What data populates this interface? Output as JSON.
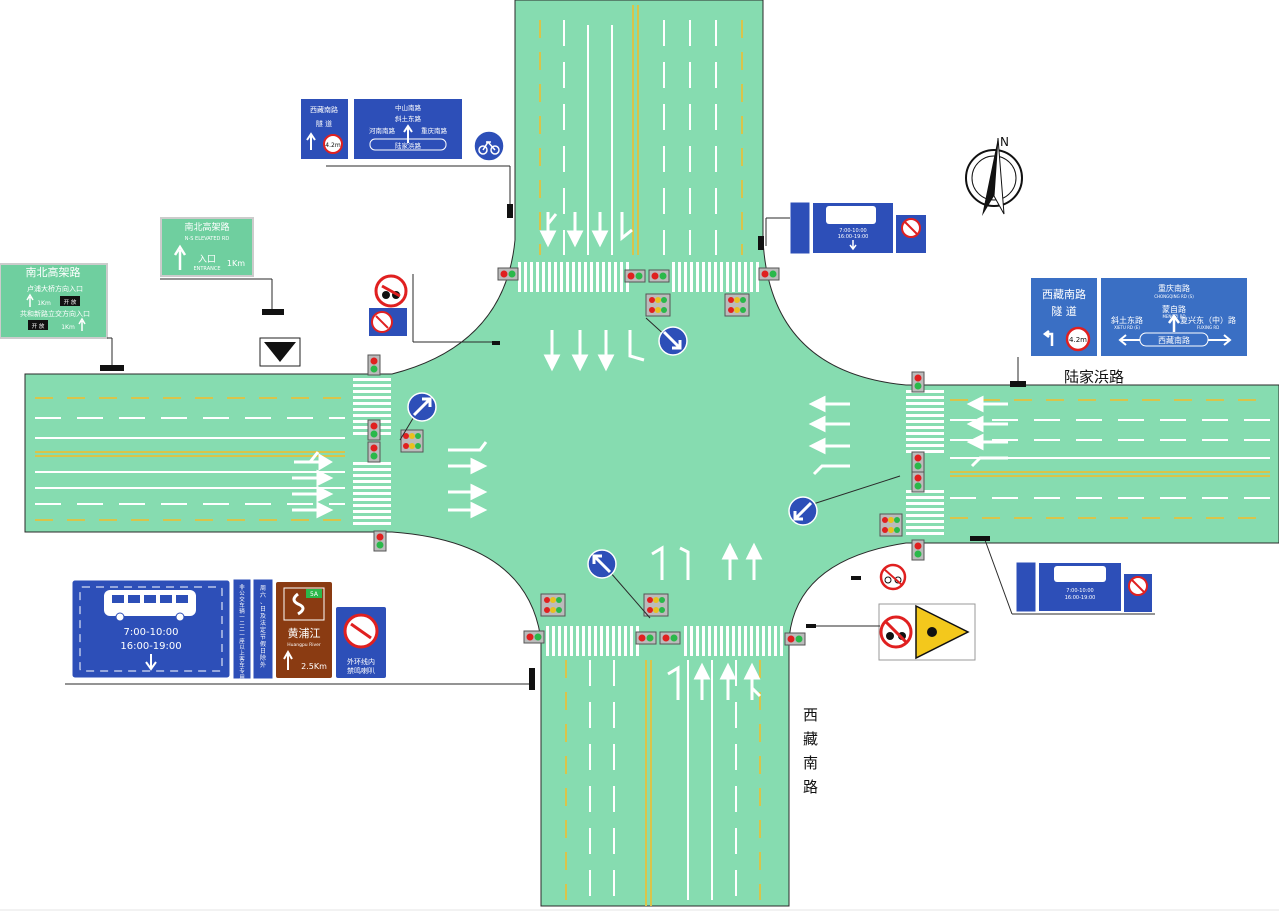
{
  "colors": {
    "road": "#86dcb0",
    "road_edge": "#2a2a2a",
    "sign_blue": "#2d4fb8",
    "guide_blue": "#3a6fc4",
    "guide_green": "#6fcf9f",
    "brown": "#8a3b12",
    "signal_red": "#e02020",
    "signal_yellow": "#e8c020",
    "signal_green": "#2ab84a",
    "yellow_line": "#d9c44a",
    "warn_yellow": "#f3c81c"
  },
  "road_names": {
    "east": "陆家浜路",
    "south": "西藏南路"
  },
  "compass": {
    "north_label": "N"
  },
  "signs": {
    "nw_lane_sign": {
      "road": "西藏南路",
      "tunnel": "隧  道",
      "height": "4.2m"
    },
    "nw_direction_sign": {
      "top": "中山南路",
      "middle": "斜土东路",
      "left": "河南南路",
      "right": "重庆南路",
      "bottom": "陆家浜路"
    },
    "nw_bike": {
      "icon": "bicycle-icon"
    },
    "elevated_entrance_small": {
      "title": "南北高架路",
      "subtitle": "N-S ELEVATED RD",
      "entrance": "入口",
      "entrance_en": "ENTRANCE",
      "distance": "1Km"
    },
    "elevated_entrance_large": {
      "title": "南北高架路",
      "line1": "卢浦大桥方向入口",
      "line1_dist": "1Km",
      "line1_status": "开 放",
      "line2": "共和新路立交方向入口",
      "line2_status": "开 放",
      "line2_dist": "1Km"
    },
    "ne_bus_lane": {
      "time": "7:00-10:00",
      "time2": "16:00-19:00",
      "ban": "外环线内禁鸣喇叭"
    },
    "east_lane_sign": {
      "road": "西藏南路",
      "tunnel": "隧  道",
      "height": "4.2m"
    },
    "east_direction_sign": {
      "top": "重庆南路",
      "top_en": "CHONGQING RD (S)",
      "left": "斜土东路",
      "left_en": "XIETU RD (E)",
      "middle": "蒙自路",
      "middle_en": "MENGZI RD",
      "right": "复兴东（中）路",
      "right_en": "FUXING RD",
      "bottom": "西藏南路"
    },
    "se_bus_lane": {
      "time": "7:00-10:00",
      "time2": "16:00-19:00",
      "ban": "外环线内禁鸣喇叭"
    },
    "sw_bus_lane": {
      "time1": "7:00-10:00",
      "time2": "16:00-19:00"
    },
    "sw_vertical_1": "非公交车辆一二二一座以上客车专用",
    "sw_vertical_2": "周六、日及法定节假日除外",
    "sw_river": {
      "name": "黄浦江",
      "name_en": "Huangpu River",
      "distance": "2.5Km",
      "badge": "5A"
    },
    "sw_horn_ban": "外环线内\n禁鸣喇叭"
  },
  "stroke_widths": []
}
